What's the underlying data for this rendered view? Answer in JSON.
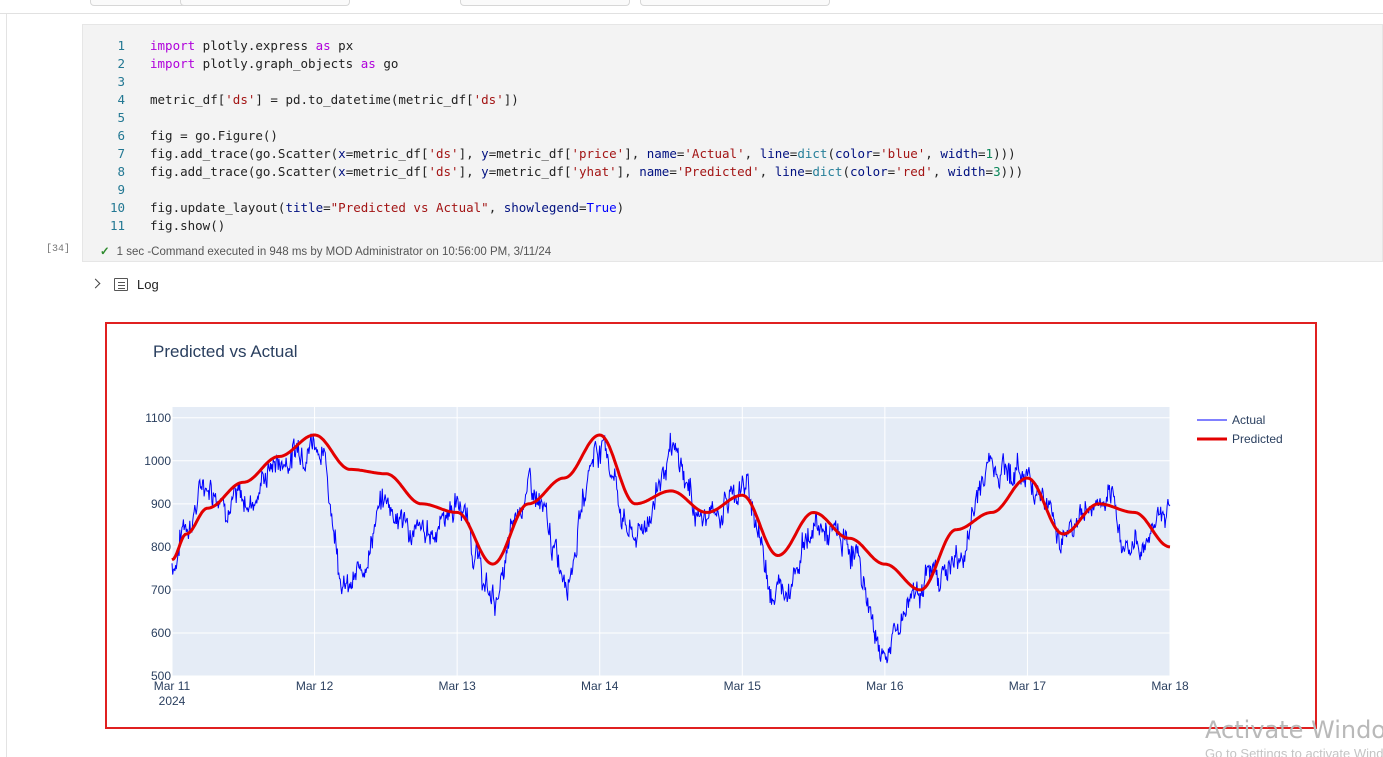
{
  "notebook": {
    "cell_index": "[34]",
    "code_lines": [
      {
        "n": "1",
        "html": "<span class='kw'>import</span> plotly.express <span class='kw'>as</span> px"
      },
      {
        "n": "2",
        "html": "<span class='kw'>import</span> plotly.graph_objects <span class='kw'>as</span> go"
      },
      {
        "n": "3",
        "html": ""
      },
      {
        "n": "4",
        "html": "metric_df[<span class='str'>'ds'</span>] = pd.to_datetime(metric_df[<span class='str'>'ds'</span>])"
      },
      {
        "n": "5",
        "html": ""
      },
      {
        "n": "6",
        "html": "fig = go.Figure()"
      },
      {
        "n": "7",
        "html": "fig.add_trace(go.Scatter(<span class='param'>x</span>=metric_df[<span class='str'>'ds'</span>], <span class='param'>y</span>=metric_df[<span class='str'>'price'</span>], <span class='param'>name</span>=<span class='str'>'Actual'</span>, <span class='param'>line</span>=<span class='bi'>dict</span>(<span class='param'>color</span>=<span class='str'>'blue'</span>, <span class='param'>width</span>=<span class='num'>1</span>)))"
      },
      {
        "n": "8",
        "html": "fig.add_trace(go.Scatter(<span class='param'>x</span>=metric_df[<span class='str'>'ds'</span>], <span class='param'>y</span>=metric_df[<span class='str'>'yhat'</span>], <span class='param'>name</span>=<span class='str'>'Predicted'</span>, <span class='param'>line</span>=<span class='bi'>dict</span>(<span class='param'>color</span>=<span class='str'>'red'</span>, <span class='param'>width</span>=<span class='num'>3</span>)))"
      },
      {
        "n": "9",
        "html": ""
      },
      {
        "n": "10",
        "html": "fig.update_layout(<span class='param'>title</span>=<span class='str'>\"Predicted vs Actual\"</span>, <span class='param'>showlegend</span>=<span class='const'>True</span>)"
      },
      {
        "n": "11",
        "html": "fig.show()"
      }
    ],
    "exec_time": "1 sec",
    "exec_message": "-Command executed in 948 ms by MOD Administrator on 10:56:00 PM, 3/11/24",
    "log_label": "Log"
  },
  "colors": {
    "actual": "#0000ff",
    "predicted": "#e30000",
    "plot_bg": "#e5ecf6",
    "grid": "#ffffff",
    "title": "#2a3f5f",
    "tick": "#2a3f5f",
    "frame": "#e02020"
  },
  "chart_data": {
    "type": "line",
    "title": "Predicted vs Actual",
    "xlabel": "",
    "ylabel": "",
    "x_ticks": [
      "Mar 11",
      "Mar 12",
      "Mar 13",
      "Mar 14",
      "Mar 15",
      "Mar 16",
      "Mar 17",
      "Mar 18"
    ],
    "x_tick_sublabel": "2024",
    "x_range": [
      "2024-03-11",
      "2024-03-18"
    ],
    "y_ticks": [
      500,
      600,
      700,
      800,
      900,
      1000,
      1100
    ],
    "ylim": [
      500,
      1125
    ],
    "grid": true,
    "legend": "top-right",
    "legend_entries": [
      "Actual",
      "Predicted"
    ],
    "series": [
      {
        "name": "Predicted",
        "x_days": [
          0,
          0.1,
          0.25,
          0.5,
          0.75,
          1.0,
          1.25,
          1.5,
          1.75,
          2.0,
          2.25,
          2.5,
          2.75,
          3.0,
          3.25,
          3.5,
          3.75,
          4.0,
          4.25,
          4.5,
          4.75,
          5.0,
          5.25,
          5.5,
          5.75,
          6.0,
          6.25,
          6.5,
          6.75,
          7.0
        ],
        "values": [
          770,
          830,
          890,
          950,
          1010,
          1060,
          980,
          970,
          900,
          880,
          760,
          900,
          960,
          1060,
          900,
          930,
          880,
          920,
          780,
          880,
          820,
          760,
          700,
          840,
          880,
          960,
          830,
          900,
          880,
          800
        ]
      },
      {
        "name": "Actual",
        "x_days": [
          0,
          0.1,
          0.25,
          0.5,
          0.75,
          1.0,
          1.25,
          1.5,
          1.75,
          2.0,
          2.25,
          2.5,
          2.75,
          3.0,
          3.25,
          3.5,
          3.75,
          4.0,
          4.25,
          4.5,
          4.75,
          5.0,
          5.25,
          5.5,
          5.75,
          6.0,
          6.25,
          6.5,
          6.75,
          7.0
        ],
        "values": [
          760,
          860,
          950,
          900,
          1000,
          1060,
          700,
          900,
          820,
          900,
          680,
          930,
          750,
          1040,
          820,
          1000,
          860,
          940,
          700,
          840,
          800,
          560,
          720,
          760,
          1000,
          970,
          840,
          900,
          800,
          900
        ]
      }
    ]
  },
  "watermark": {
    "title": "Activate Windows",
    "subtitle": "Go to Settings to activate Windows."
  }
}
